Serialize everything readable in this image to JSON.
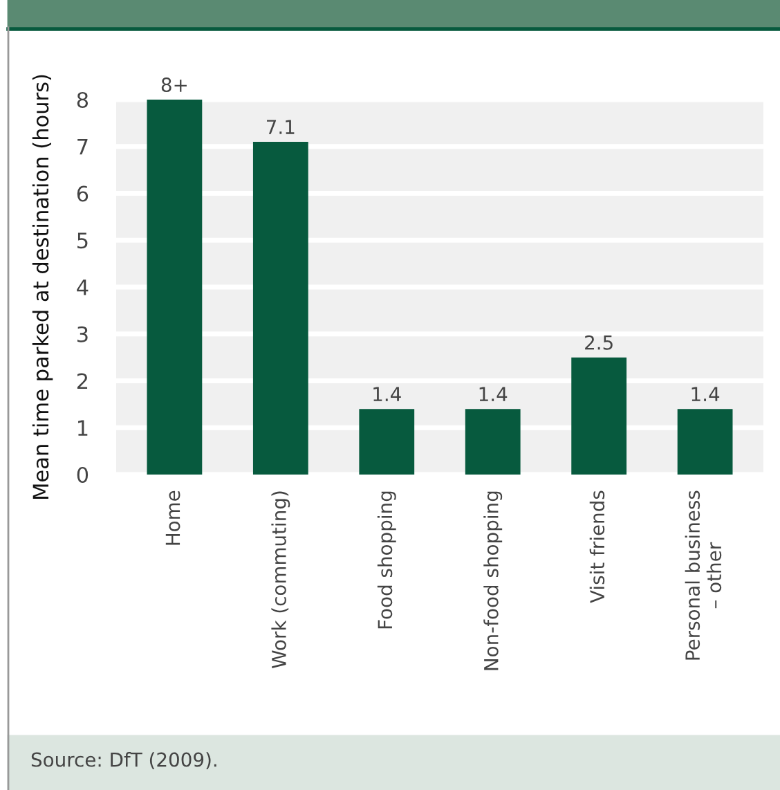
{
  "chart_data": {
    "type": "bar",
    "ylabel": "Mean time parked at destination (hours)",
    "categories": [
      "Home",
      "Work (commuting)",
      "Food shopping",
      "Non-food shopping",
      "Visit friends",
      "Personal business\n– other"
    ],
    "values": [
      8,
      7.1,
      1.4,
      1.4,
      2.5,
      1.4
    ],
    "value_labels": [
      "8+",
      "7.1",
      "1.4",
      "1.4",
      "2.5",
      "1.4"
    ],
    "color": "#075a3e",
    "ylim": [
      0,
      8
    ],
    "yticks": [
      0,
      1,
      2,
      3,
      4,
      5,
      6,
      7,
      8
    ],
    "grid": "y",
    "annotations": [
      "Source: DfT (2009)."
    ]
  }
}
